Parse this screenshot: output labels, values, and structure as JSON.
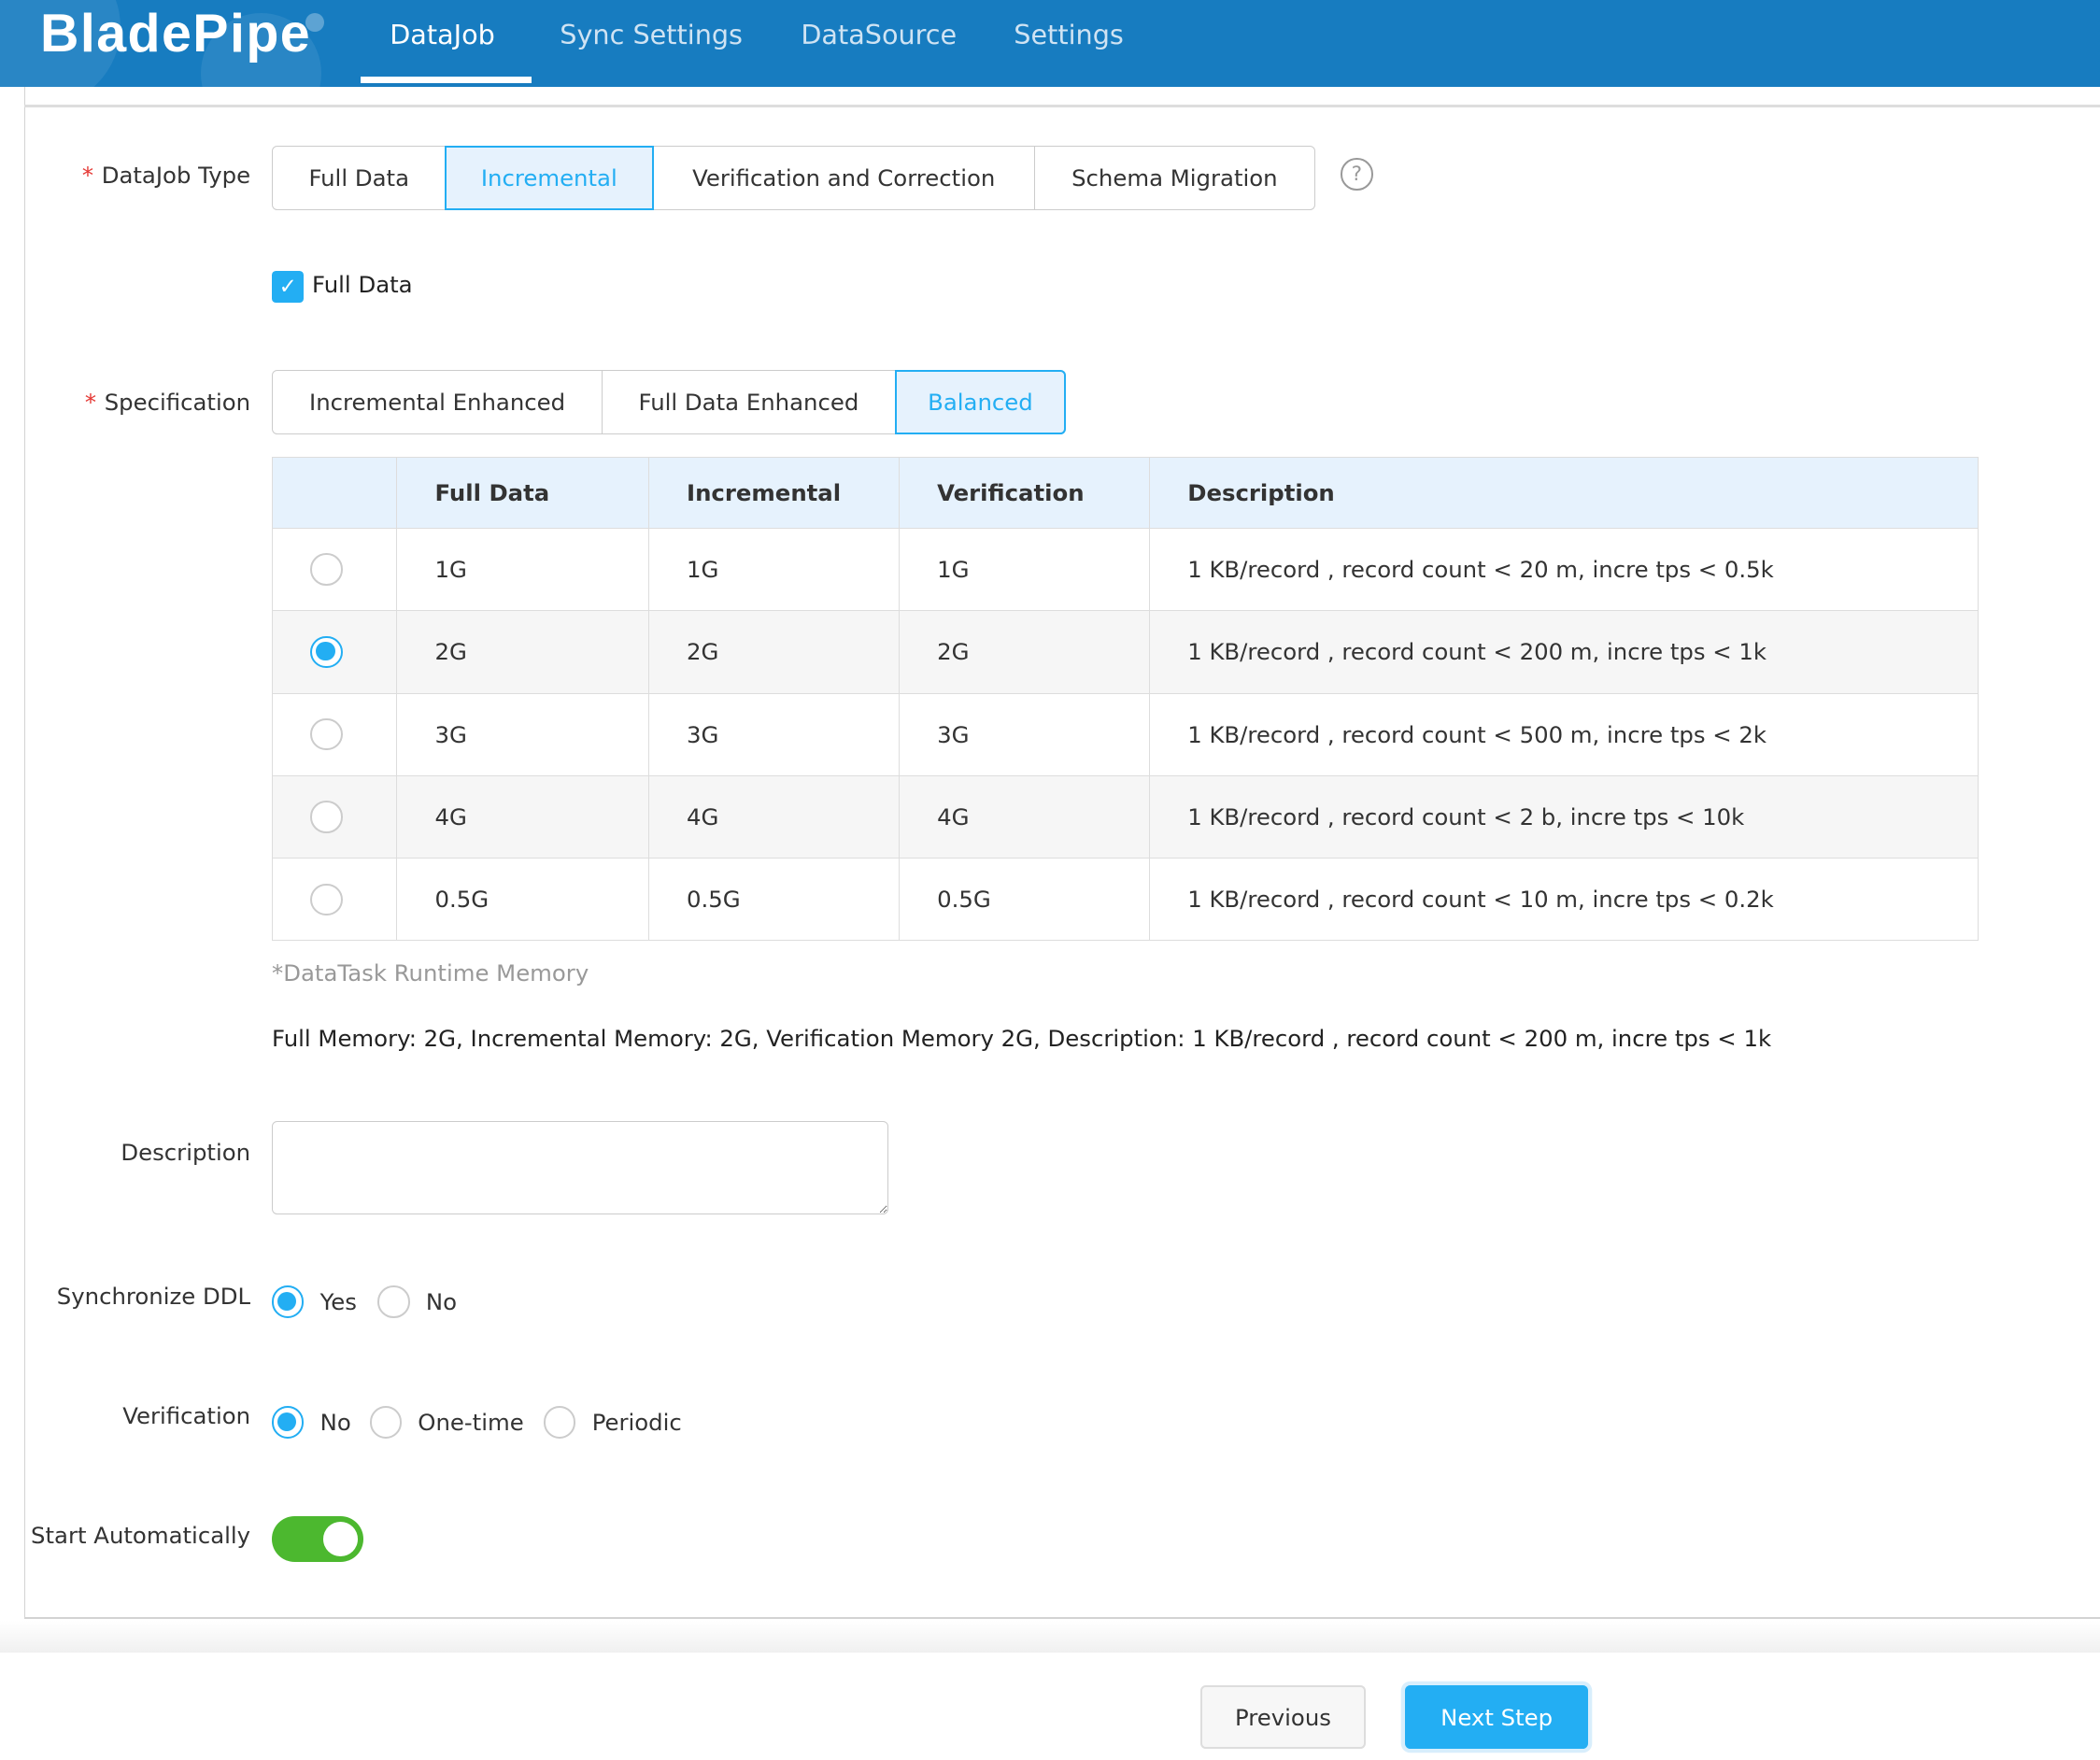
{
  "header": {
    "logo": "BladePipe",
    "tabs": [
      {
        "label": "DataJob",
        "active": true
      },
      {
        "label": "Sync Settings"
      },
      {
        "label": "DataSource"
      },
      {
        "label": "Settings"
      }
    ]
  },
  "form": {
    "datajob_type": {
      "label": "DataJob Type",
      "options": [
        "Full Data",
        "Incremental",
        "Verification and Correction",
        "Schema Migration"
      ],
      "selected": "Incremental",
      "help_icon": "question-circle-icon"
    },
    "full_data_checkbox": {
      "label": "Full Data",
      "checked": true
    },
    "specification": {
      "label": "Specification",
      "options": [
        "Incremental Enhanced",
        "Full Data Enhanced",
        "Balanced"
      ],
      "selected": "Balanced"
    },
    "spec_table": {
      "headers": [
        "",
        "Full Data",
        "Incremental",
        "Verification",
        "Description"
      ],
      "rows": [
        {
          "full": "1G",
          "incr": "1G",
          "verif": "1G",
          "desc": "1 KB/record , record count < 20 m, incre tps < 0.5k",
          "selected": false
        },
        {
          "full": "2G",
          "incr": "2G",
          "verif": "2G",
          "desc": "1 KB/record , record count < 200 m, incre tps < 1k",
          "selected": true
        },
        {
          "full": "3G",
          "incr": "3G",
          "verif": "3G",
          "desc": "1 KB/record , record count < 500 m, incre tps < 2k",
          "selected": false
        },
        {
          "full": "4G",
          "incr": "4G",
          "verif": "4G",
          "desc": "1 KB/record , record count < 2 b, incre tps < 10k",
          "selected": false
        },
        {
          "full": "0.5G",
          "incr": "0.5G",
          "verif": "0.5G",
          "desc": "1 KB/record , record count < 10 m, incre tps < 0.2k",
          "selected": false
        }
      ]
    },
    "note": "*DataTask Runtime Memory",
    "summary": "Full Memory: 2G, Incremental Memory: 2G, Verification Memory 2G, Description: 1 KB/record , record count < 200 m, incre tps < 1k",
    "description": {
      "label": "Description",
      "value": ""
    },
    "sync_ddl": {
      "label": "Synchronize DDL",
      "options": [
        "Yes",
        "No"
      ],
      "selected": "Yes"
    },
    "verification": {
      "label": "Verification",
      "options": [
        "No",
        "One-time",
        "Periodic"
      ],
      "selected": "No"
    },
    "start_auto": {
      "label": "Start Automatically",
      "on": true
    }
  },
  "footer": {
    "previous": "Previous",
    "next": "Next Step"
  },
  "colors": {
    "header": "#177cc0",
    "accent": "#23aef3",
    "toggle_on": "#4cb82f",
    "required": "#e53935"
  }
}
